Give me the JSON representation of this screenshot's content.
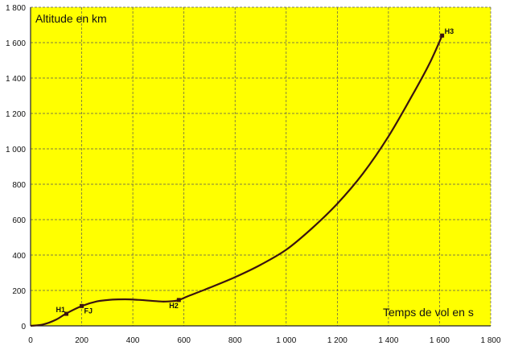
{
  "chart_data": {
    "type": "line",
    "title": "",
    "xlabel": "Temps de vol en s",
    "ylabel": "Altitude en km",
    "xlim": [
      0,
      1800
    ],
    "ylim": [
      0,
      1800
    ],
    "grid": true,
    "x_ticks": [
      0,
      200,
      400,
      600,
      800,
      1000,
      1200,
      1400,
      1600,
      1800
    ],
    "x_tick_labels": [
      "0",
      "200",
      "400",
      "600",
      "800",
      "1 000",
      "1 200",
      "1 400",
      "1 600",
      "1 800"
    ],
    "y_ticks": [
      0,
      200,
      400,
      600,
      800,
      1000,
      1200,
      1400,
      1600,
      1800
    ],
    "y_tick_labels": [
      "0",
      "200",
      "400",
      "600",
      "800",
      "1 000",
      "1 200",
      "1 400",
      "1 600",
      "1 800"
    ],
    "series": [
      {
        "x": [
          0,
          50,
          100,
          140,
          200,
          260,
          320,
          370,
          420,
          470,
          520,
          560,
          580,
          620,
          700,
          800,
          900,
          1000,
          1100,
          1200,
          1300,
          1400,
          1500,
          1560,
          1610
        ],
        "y": [
          0,
          8,
          35,
          70,
          112,
          138,
          148,
          150,
          147,
          142,
          137,
          140,
          146,
          170,
          215,
          275,
          345,
          430,
          550,
          690,
          860,
          1070,
          1320,
          1480,
          1640
        ]
      }
    ],
    "points": [
      {
        "label": "H1",
        "x": 140,
        "y": 68
      },
      {
        "label": "FJ",
        "x": 200,
        "y": 112
      },
      {
        "label": "H2",
        "x": 580,
        "y": 146
      },
      {
        "label": "H3",
        "x": 1610,
        "y": 1640
      }
    ]
  },
  "colors": {
    "plot_background": "#ffff00",
    "curve": "#3a1410",
    "grid": "#555555"
  }
}
